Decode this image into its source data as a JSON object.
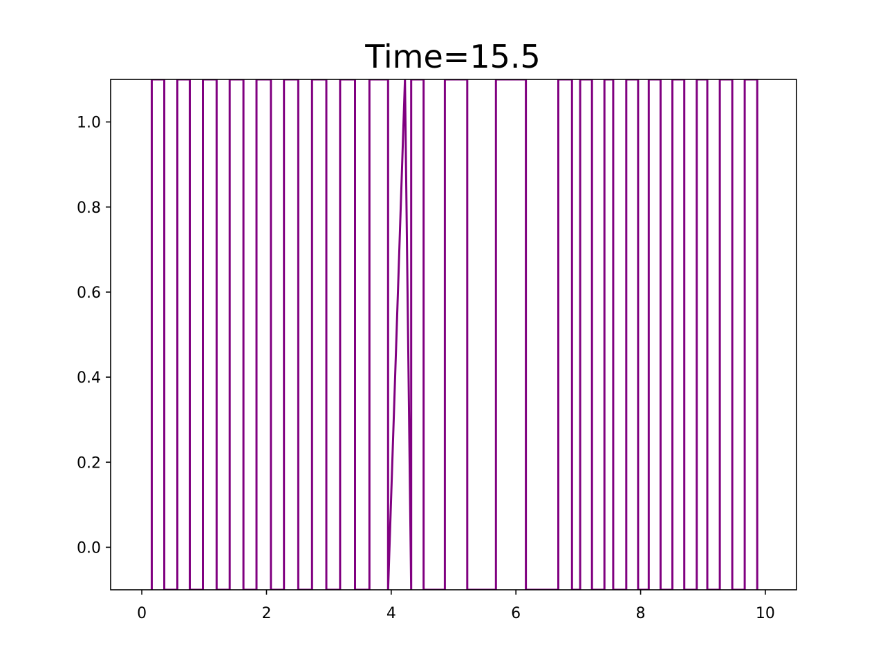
{
  "chart_data": {
    "type": "line",
    "title": "Time=15.5",
    "xlabel": "",
    "ylabel": "",
    "xlim": [
      -0.5,
      10.5
    ],
    "ylim": [
      -0.1,
      1.1
    ],
    "x_ticks": [
      "0",
      "2",
      "4",
      "6",
      "8",
      "10"
    ],
    "x_tick_values": [
      0,
      2,
      4,
      6,
      8,
      10
    ],
    "y_ticks": [
      "0.0",
      "0.2",
      "0.4",
      "0.6",
      "0.8",
      "1.0"
    ],
    "y_tick_values": [
      0.0,
      0.2,
      0.4,
      0.6,
      0.8,
      1.0
    ],
    "grid": false,
    "line_color": "#800080",
    "series": [
      {
        "x": [
          0.16,
          0.16,
          0.36,
          0.36,
          0.57,
          0.57,
          0.77,
          0.77,
          0.98,
          0.98,
          1.2,
          1.2,
          1.41,
          1.41,
          1.63,
          1.63,
          1.84,
          1.84,
          2.07,
          2.07,
          2.28,
          2.28,
          2.51,
          2.51,
          2.73,
          2.73,
          2.96,
          2.96,
          3.18,
          3.18,
          3.42,
          3.42,
          3.65,
          3.65,
          3.95,
          3.95,
          4.22,
          4.32,
          4.32,
          4.52,
          4.52,
          4.86,
          4.86,
          5.22,
          5.22,
          5.68,
          5.68,
          6.16,
          6.16,
          6.68,
          6.68,
          6.9,
          6.9,
          7.03,
          7.03,
          7.22,
          7.22,
          7.42,
          7.42,
          7.56,
          7.56,
          7.77,
          7.77,
          7.96,
          7.96,
          8.13,
          8.13,
          8.32,
          8.32,
          8.51,
          8.51,
          8.7,
          8.7,
          8.9,
          8.9,
          9.07,
          9.07,
          9.27,
          9.27,
          9.47,
          9.47,
          9.67,
          9.67,
          9.87,
          9.87
        ],
        "y": [
          -0.1,
          1.1,
          1.1,
          -0.1,
          -0.1,
          1.1,
          1.1,
          -0.1,
          -0.1,
          1.1,
          1.1,
          -0.1,
          -0.1,
          1.1,
          1.1,
          -0.1,
          -0.1,
          1.1,
          1.1,
          -0.1,
          -0.1,
          1.1,
          1.1,
          -0.1,
          -0.1,
          1.1,
          1.1,
          -0.1,
          -0.1,
          1.1,
          1.1,
          -0.1,
          -0.1,
          1.1,
          1.1,
          -0.1,
          1.1,
          -0.1,
          1.1,
          1.1,
          -0.1,
          -0.1,
          1.1,
          1.1,
          -0.1,
          -0.1,
          1.1,
          1.1,
          -0.1,
          -0.1,
          1.1,
          1.1,
          -0.1,
          -0.1,
          1.1,
          1.1,
          -0.1,
          -0.1,
          1.1,
          1.1,
          -0.1,
          -0.1,
          1.1,
          1.1,
          -0.1,
          -0.1,
          1.1,
          1.1,
          -0.1,
          -0.1,
          1.1,
          1.1,
          -0.1,
          -0.1,
          1.1,
          1.1,
          -0.1,
          -0.1,
          1.1,
          1.1,
          -0.1,
          -0.1,
          1.1,
          1.1,
          -0.1
        ]
      }
    ]
  }
}
